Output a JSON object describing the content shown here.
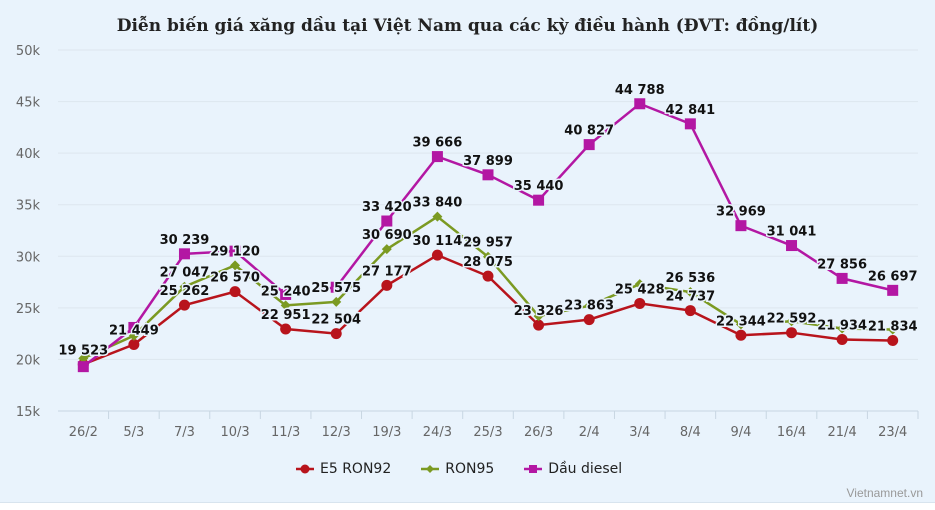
{
  "chart_data": {
    "type": "line",
    "title": "Diễn biến giá xăng dầu tại Việt Nam qua các kỳ điều hành (ĐVT: đồng/lít)",
    "categories": [
      "26/2",
      "5/3",
      "7/3",
      "10/3",
      "11/3",
      "12/3",
      "19/3",
      "24/3",
      "25/3",
      "26/3",
      "2/4",
      "3/4",
      "8/4",
      "9/4",
      "16/4",
      "21/4",
      "23/4"
    ],
    "ylim": [
      15000,
      50000
    ],
    "yticks": [
      "15k",
      "20k",
      "25k",
      "30k",
      "35k",
      "40k",
      "45k",
      "50k"
    ],
    "ytick_values": [
      15000,
      20000,
      25000,
      30000,
      35000,
      40000,
      45000,
      50000
    ],
    "grid": true,
    "legend_position": "bottom",
    "series": [
      {
        "name": "E5 RON92",
        "color": "#b8141c",
        "marker": "circle",
        "values": [
          19523,
          21449,
          25262,
          26570,
          22951,
          22504,
          27177,
          30114,
          28075,
          23326,
          23863,
          25428,
          24737,
          22344,
          22592,
          21934,
          21834
        ],
        "labeled": [
          true,
          true,
          true,
          true,
          true,
          true,
          true,
          true,
          true,
          true,
          true,
          true,
          true,
          true,
          true,
          true,
          true
        ]
      },
      {
        "name": "RON95",
        "color": "#7b9a22",
        "marker": "diamond",
        "values": [
          20100,
          22300,
          27047,
          29120,
          25240,
          25575,
          30690,
          33840,
          29957,
          24200,
          25200,
          27300,
          26536,
          23400,
          23700,
          23000,
          22900
        ],
        "labeled": [
          false,
          false,
          true,
          true,
          true,
          true,
          true,
          true,
          true,
          false,
          false,
          false,
          true,
          false,
          false,
          false,
          false
        ]
      },
      {
        "name": "Dầu diesel",
        "color": "#b317a3",
        "marker": "square",
        "values": [
          19300,
          23100,
          30239,
          30500,
          26300,
          27000,
          33420,
          39666,
          37899,
          35440,
          40827,
          44788,
          42841,
          32969,
          31041,
          27856,
          26697
        ],
        "labeled": [
          false,
          false,
          true,
          false,
          false,
          false,
          true,
          true,
          true,
          true,
          true,
          true,
          true,
          true,
          true,
          true,
          true
        ]
      }
    ]
  },
  "watermark": "Vietnamnet.vn"
}
